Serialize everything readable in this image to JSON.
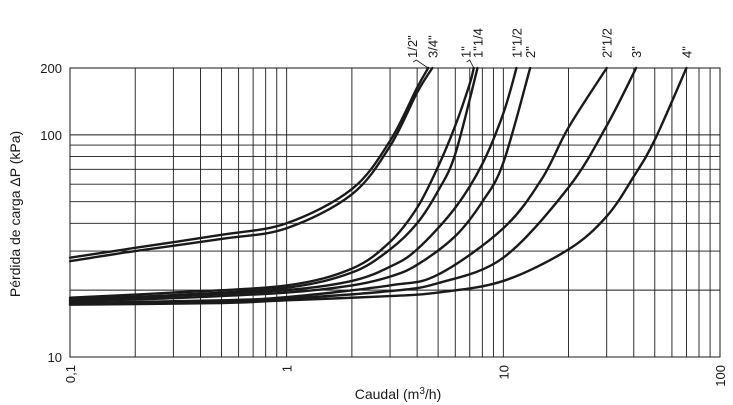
{
  "chart_data": {
    "type": "line",
    "xlabel": "Caudal (m³/h)",
    "ylabel": "Pérdida de carga ΔP (kPa)",
    "xscale": "log",
    "yscale": "log",
    "xlim": [
      0.1,
      100
    ],
    "ylim": [
      10,
      200
    ],
    "grid": true,
    "x_ticks": [
      "0,1",
      "1",
      "10",
      "100"
    ],
    "y_ticks": [
      "10",
      "100",
      "200"
    ],
    "series": [
      {
        "name": "1/2\"",
        "x": [
          0.1,
          0.2,
          0.5,
          1,
          2,
          3,
          4,
          4.5
        ],
        "y": [
          28,
          31,
          35.5,
          40,
          57,
          94,
          163,
          200
        ]
      },
      {
        "name": "3/4\"",
        "x": [
          0.1,
          0.2,
          0.5,
          1,
          2,
          3,
          4,
          4.7
        ],
        "y": [
          27,
          30,
          34,
          38,
          54,
          89,
          155,
          200
        ]
      },
      {
        "name": "1\"",
        "x": [
          0.1,
          0.3,
          1,
          2,
          3,
          4,
          5,
          6,
          7,
          7.3
        ],
        "y": [
          18.5,
          19.5,
          21,
          25,
          33,
          47,
          72,
          110,
          170,
          200
        ]
      },
      {
        "name": "1\"1/4",
        "x": [
          0.1,
          0.3,
          1,
          2,
          3,
          4,
          5,
          6,
          7.6
        ],
        "y": [
          18.2,
          19,
          20.5,
          24,
          30.5,
          40,
          56,
          82,
          200
        ]
      },
      {
        "name": "1\"1/2",
        "x": [
          0.1,
          0.3,
          1,
          2,
          3,
          4,
          6,
          8,
          10,
          11.5
        ],
        "y": [
          18,
          18.8,
          20,
          22,
          25.5,
          30.5,
          47,
          74,
          125,
          200
        ]
      },
      {
        "name": "2\"",
        "x": [
          0.1,
          0.3,
          1,
          2,
          3,
          4,
          6,
          8,
          10,
          13.3
        ],
        "y": [
          17.8,
          18.4,
          19.5,
          21,
          23,
          26,
          35,
          50,
          75,
          200
        ]
      },
      {
        "name": "2\"1/2",
        "x": [
          0.1,
          0.5,
          1,
          3,
          5,
          10,
          15,
          20,
          30
        ],
        "y": [
          17.5,
          18,
          18.6,
          21,
          23.5,
          38,
          63,
          108,
          200
        ]
      },
      {
        "name": "3\"",
        "x": [
          0.1,
          0.5,
          1,
          3,
          5,
          10,
          20,
          30,
          41
        ],
        "y": [
          17.3,
          17.8,
          18.3,
          19.8,
          21.5,
          28,
          58,
          110,
          200
        ]
      },
      {
        "name": "4\"",
        "x": [
          0.1,
          0.5,
          1,
          3,
          5,
          10,
          20,
          30,
          40,
          50,
          70
        ],
        "y": [
          17.2,
          17.5,
          18,
          18.8,
          19.5,
          22,
          30.5,
          43,
          65,
          95,
          200
        ]
      }
    ]
  }
}
